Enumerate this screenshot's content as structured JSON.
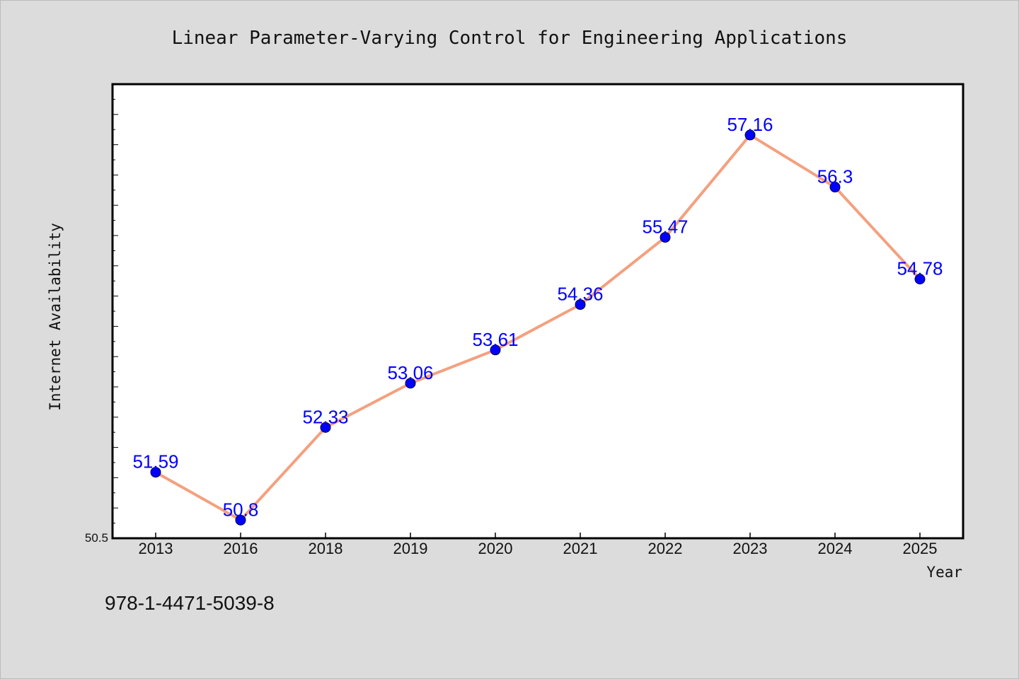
{
  "chart_data": {
    "type": "line",
    "title": "Linear Parameter-Varying Control for Engineering Applications",
    "xlabel": "Year",
    "ylabel": "Internet Availability",
    "categories": [
      "2013",
      "2016",
      "2018",
      "2019",
      "2020",
      "2021",
      "2022",
      "2023",
      "2024",
      "2025"
    ],
    "series": [
      {
        "values": [
          51.59,
          50.8,
          52.33,
          53.06,
          53.61,
          54.36,
          55.47,
          57.16,
          56.3,
          54.78
        ]
      }
    ],
    "data_labels": [
      "51.59",
      "50.8",
      "52.33",
      "53.06",
      "53.61",
      "54.36",
      "55.47",
      "57.16",
      "56.3",
      "54.78"
    ],
    "y_tick_labels": [
      "50.5"
    ],
    "ylim": [
      50.5,
      58.0
    ],
    "grid": false,
    "line_color": "#f4a07f",
    "marker_color": "#0000ff",
    "label_color": "#0000ff",
    "background_color": "#dcdcdc",
    "plot_background": "#ffffff"
  },
  "footer": {
    "isbn": "978-1-4471-5039-8"
  }
}
